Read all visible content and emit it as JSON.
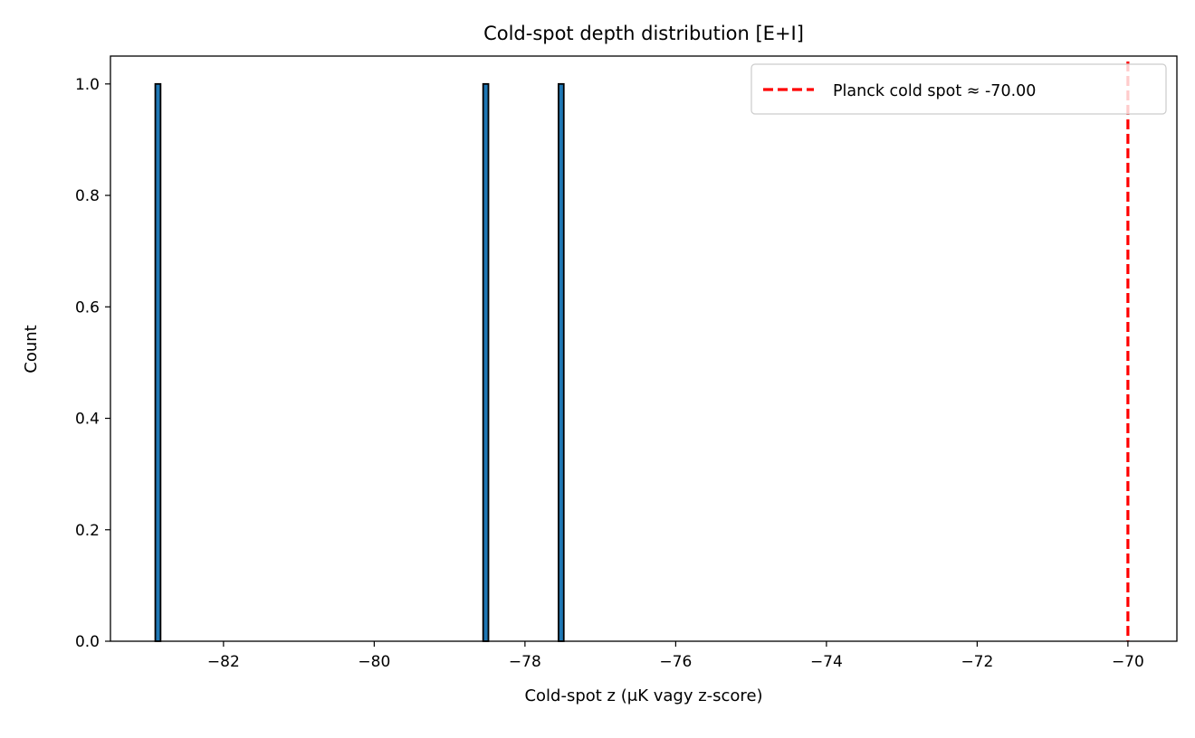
{
  "chart_data": {
    "type": "bar",
    "title": "Cold-spot depth distribution [E+I]",
    "xlabel": "Cold-spot z (μK vagy z-score)",
    "ylabel": "Count",
    "xlim": [
      -83.5,
      -69.35
    ],
    "ylim": [
      0,
      1.05
    ],
    "xticks": [
      -82,
      -80,
      -78,
      -76,
      -74,
      -72,
      -70
    ],
    "xtick_labels": [
      "−82",
      "−80",
      "−78",
      "−76",
      "−74",
      "−72",
      "−70"
    ],
    "yticks": [
      0.0,
      0.2,
      0.4,
      0.6,
      0.8,
      1.0
    ],
    "ytick_labels": [
      "0.0",
      "0.2",
      "0.4",
      "0.6",
      "0.8",
      "1.0"
    ],
    "bar_color": "#1f77b4",
    "bar_edge_color": "#000000",
    "bar_width": 0.07,
    "bars": [
      {
        "x": -82.87,
        "count": 1
      },
      {
        "x": -78.52,
        "count": 1
      },
      {
        "x": -77.52,
        "count": 1
      }
    ],
    "reference_line": {
      "x": -70.0,
      "label": "Planck cold spot ≈ -70.00",
      "color": "#ff0000",
      "style": "dashed"
    },
    "legend_position": "upper right",
    "grid": false
  }
}
